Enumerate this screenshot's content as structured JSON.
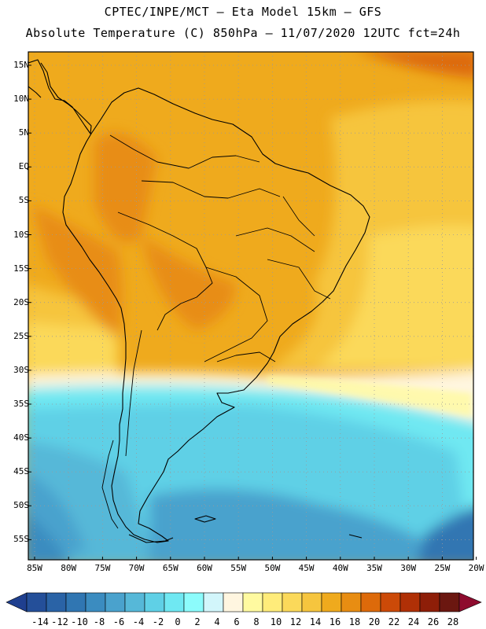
{
  "title_line1": "CPTEC/INPE/MCT –  Eta Model 15km – GFS",
  "title_line2": "Absolute Temperature (C) 850hPa – 11/07/2020 12UTC fct=24h",
  "lat_labels": [
    "15N",
    "10N",
    "5N",
    "EQ",
    "5S",
    "10S",
    "15S",
    "20S",
    "25S",
    "30S",
    "35S",
    "40S",
    "45S",
    "50S",
    "55S"
  ],
  "lon_labels": [
    "85W",
    "80W",
    "75W",
    "70W",
    "65W",
    "60W",
    "55W",
    "50W",
    "45W",
    "40W",
    "35W",
    "30W",
    "25W",
    "20W"
  ],
  "colorbar": {
    "labels": [
      "-14",
      "-12",
      "-10",
      "-8",
      "-6",
      "-4",
      "-2",
      "0",
      "2",
      "4",
      "6",
      "8",
      "10",
      "12",
      "14",
      "16",
      "18",
      "20",
      "22",
      "24",
      "26",
      "28"
    ],
    "colors": [
      "#1f3f8f",
      "#244f99",
      "#2a63a6",
      "#3076b2",
      "#3b8cc0",
      "#4aa2cd",
      "#56b8d8",
      "#5fd0e6",
      "#6fe8f2",
      "#8cfcfc",
      "#d2f6fb",
      "#fff6e0",
      "#fffaa0",
      "#ffec7a",
      "#fbd95a",
      "#f6c53e",
      "#efaa1d",
      "#e88d12",
      "#dd6a0a",
      "#cc4a08",
      "#b03006",
      "#8e1e08",
      "#6b1710",
      "#8e0b2e"
    ]
  },
  "field": {
    "variable": "Absolute Temperature (C)",
    "level": "850hPa",
    "lon_range": [
      -85,
      -20
    ],
    "lat_range": [
      -58,
      16
    ]
  }
}
